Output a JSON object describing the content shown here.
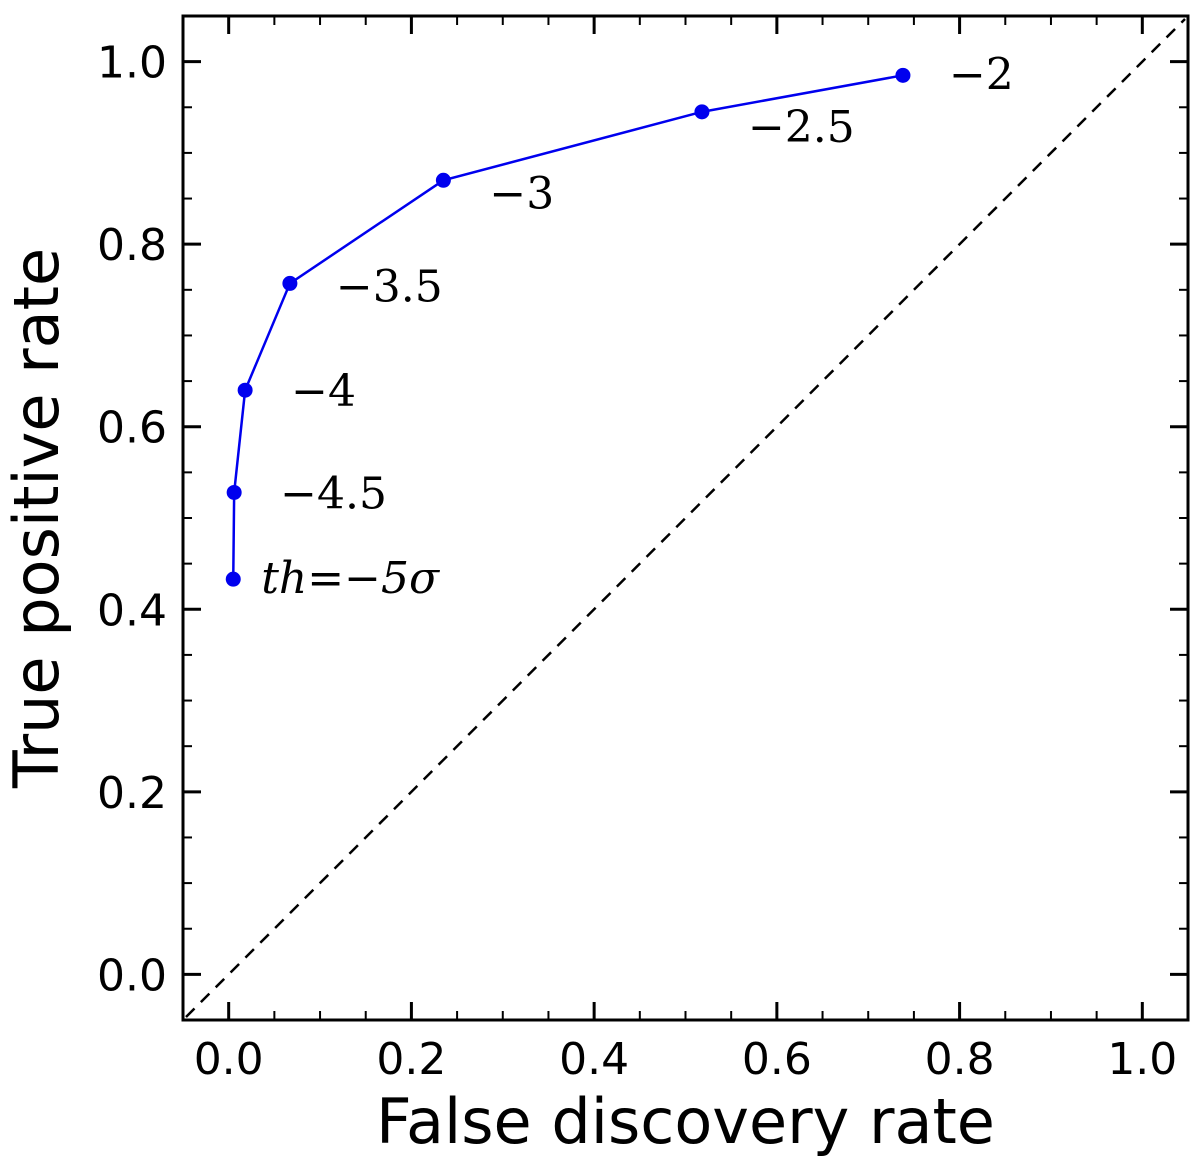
{
  "chart_data": {
    "type": "line",
    "title": "",
    "xlabel": "False discovery rate",
    "ylabel": "True positive rate",
    "xlim": [
      -0.05,
      1.05
    ],
    "ylim": [
      -0.05,
      1.05
    ],
    "grid": false,
    "x_ticks": [
      0.0,
      0.2,
      0.4,
      0.6,
      0.8,
      1.0
    ],
    "x_tick_labels": [
      "0.0",
      "0.2",
      "0.4",
      "0.6",
      "0.8",
      "1.0"
    ],
    "y_ticks": [
      0.0,
      0.2,
      0.4,
      0.6,
      0.8,
      1.0
    ],
    "y_tick_labels": [
      "0.0",
      "0.2",
      "0.4",
      "0.6",
      "0.8",
      "1.0"
    ],
    "series": [
      {
        "color": "#0000ee",
        "marker": "circle",
        "x": [
          0.005,
          0.006,
          0.018,
          0.067,
          0.235,
          0.518,
          0.738
        ],
        "y": [
          0.433,
          0.528,
          0.64,
          0.757,
          0.87,
          0.945,
          0.985
        ],
        "labels": [
          "th=−5σ",
          "−4.5",
          "−4",
          "−3.5",
          "−3",
          "−2.5",
          "−2"
        ]
      }
    ],
    "reference_line": {
      "style": "dashed",
      "color": "#000000",
      "from": [
        -0.05,
        -0.05
      ],
      "to": [
        1.05,
        1.05
      ]
    }
  }
}
